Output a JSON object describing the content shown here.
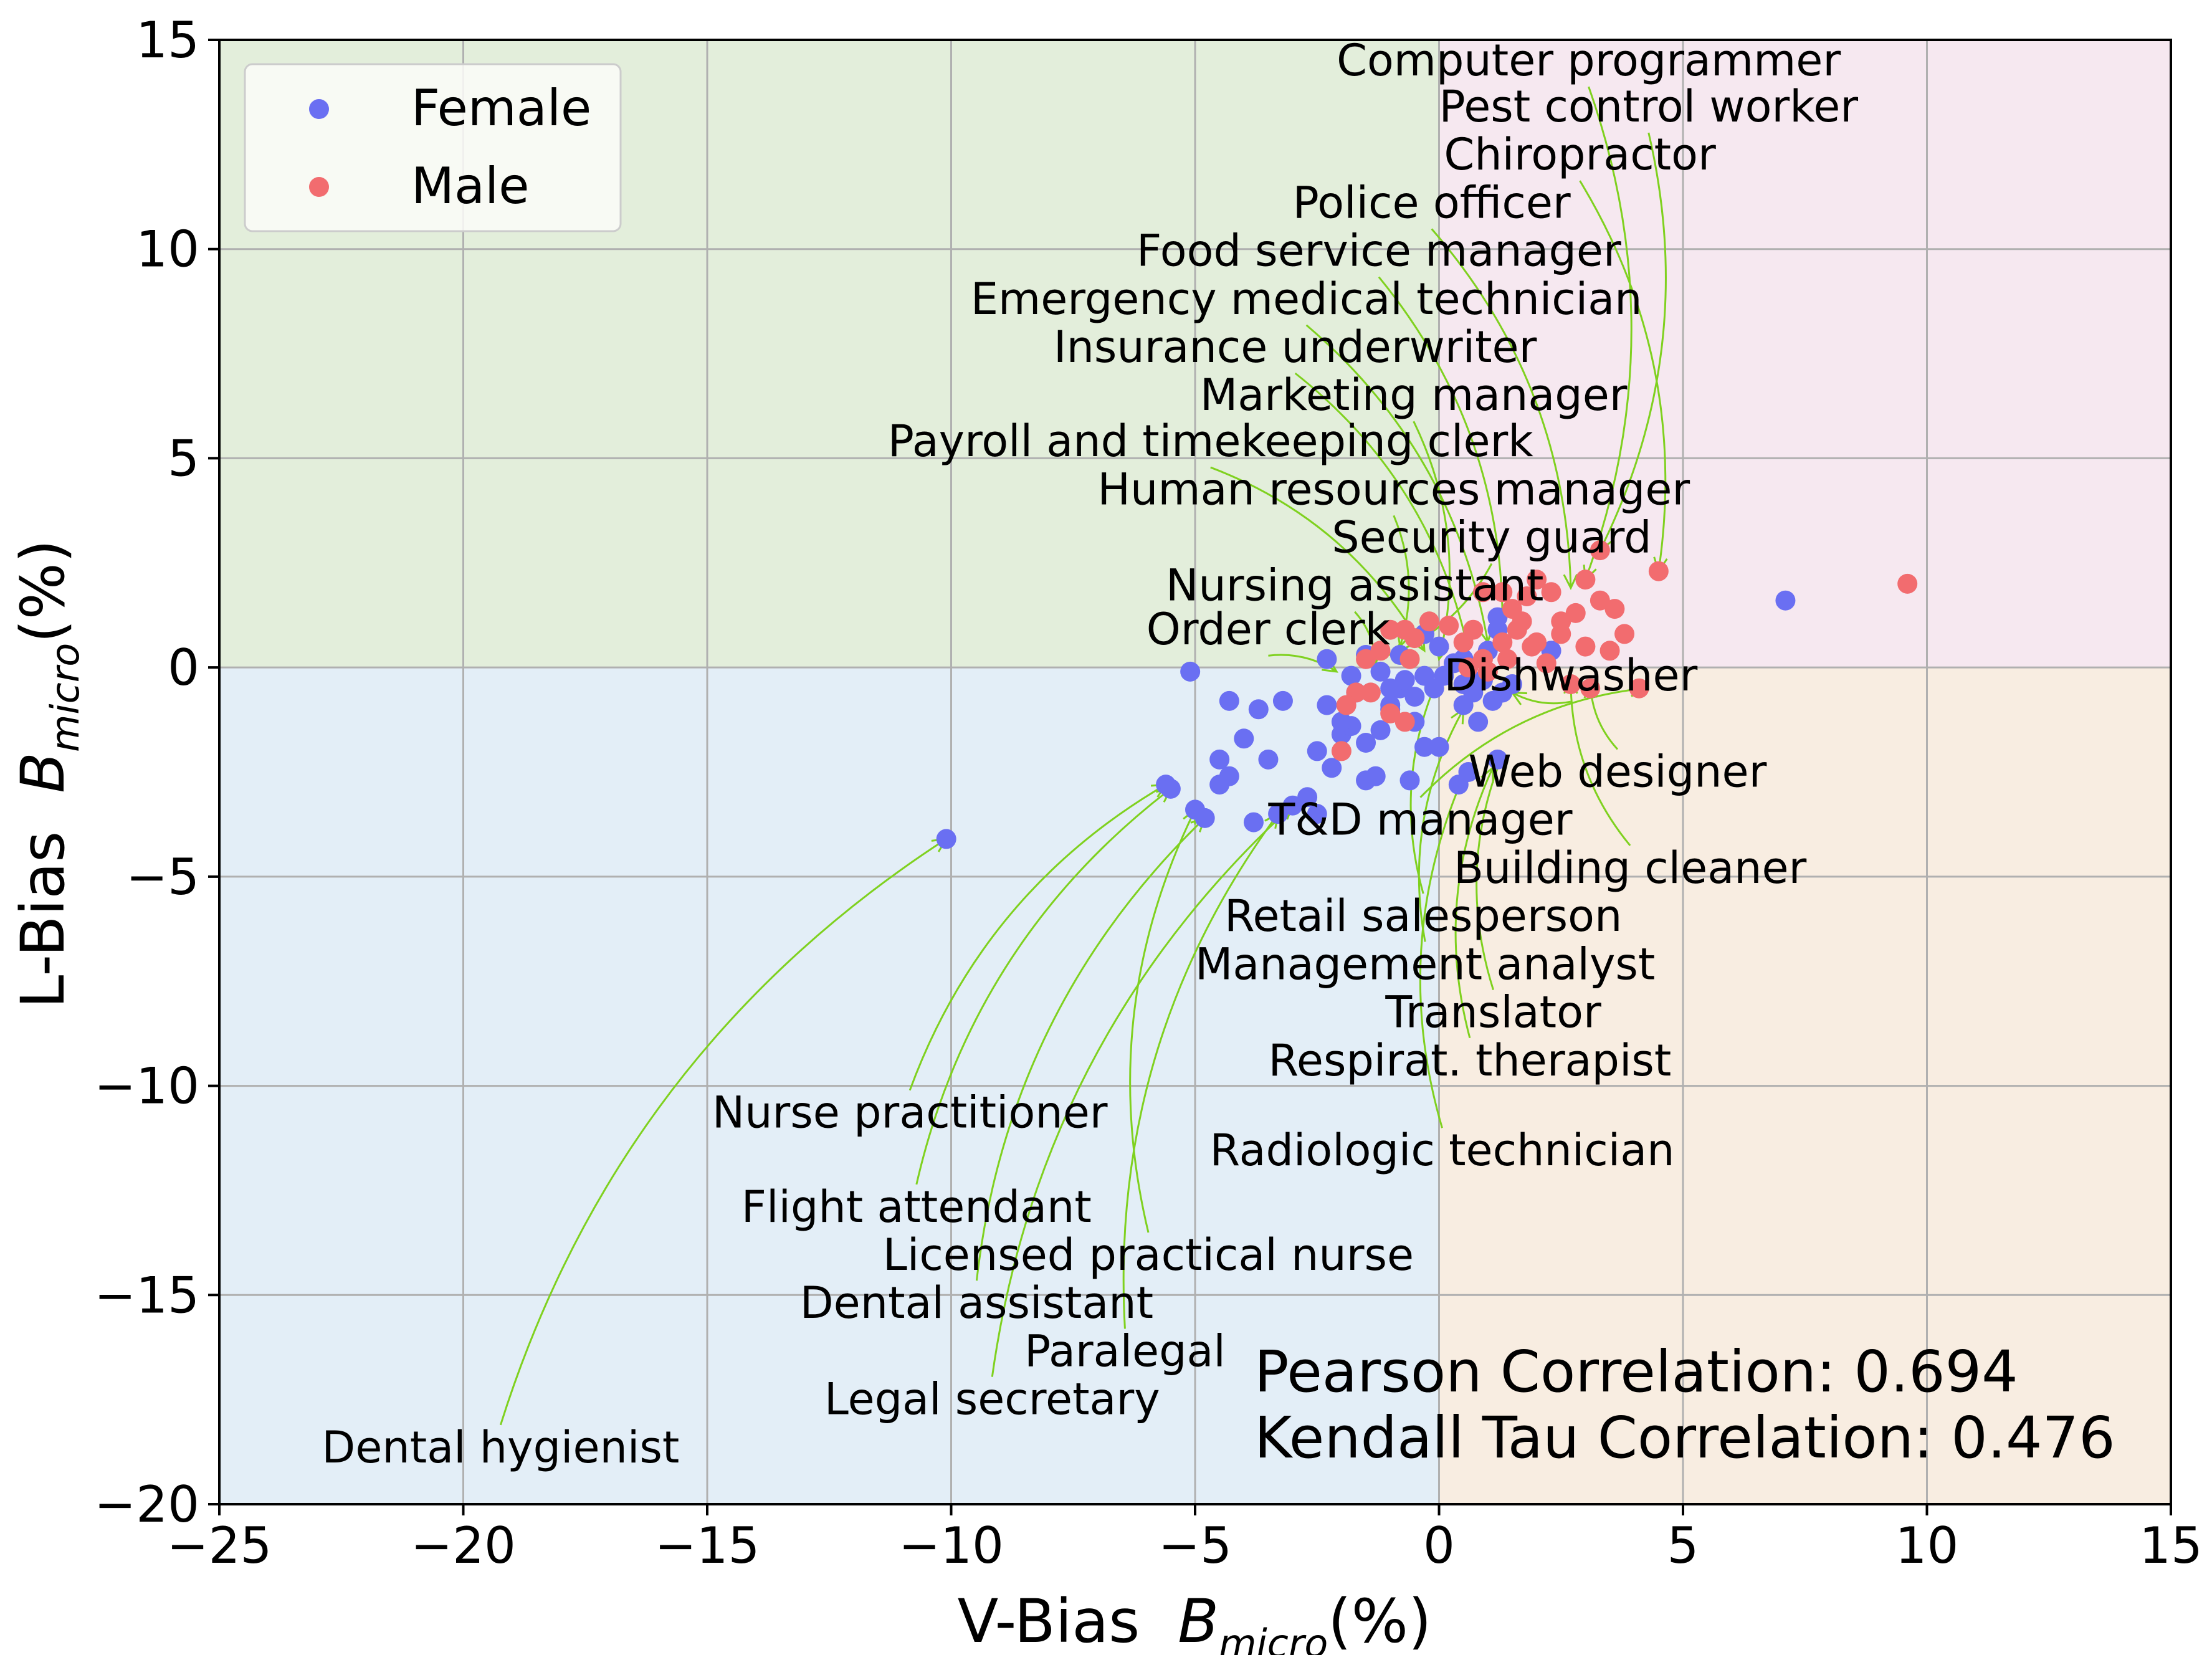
{
  "chart_data": {
    "type": "scatter",
    "xlabel": "V-Bias  B_micro(%)",
    "ylabel": "L-Bias  B_micro(%)",
    "axis_label_main": {
      "x": "V-Bias  ",
      "y": "L-Bias  "
    },
    "axis_label_symbol": "B",
    "axis_label_subscript": "micro",
    "axis_label_suffix": "(%)",
    "xlim": [
      -25,
      15
    ],
    "ylim": [
      -20,
      15
    ],
    "x_ticks": [
      -25,
      -20,
      -15,
      -10,
      -5,
      0,
      5,
      10,
      15
    ],
    "y_ticks": [
      -20,
      -15,
      -10,
      -5,
      0,
      5,
      10,
      15
    ],
    "x_tick_labels": [
      "−25",
      "−20",
      "−15",
      "−10",
      "−5",
      "0",
      "5",
      "10",
      "15"
    ],
    "y_tick_labels": [
      "−20",
      "−15",
      "−10",
      "−5",
      "0",
      "5",
      "10",
      "15"
    ],
    "grid": true,
    "legend_position": "top-left",
    "quadrant_colors": {
      "top_left": "#e3eedb",
      "top_right": "#f6e8f0",
      "bottom_left": "#e3eef7",
      "bottom_right": "#f8ede1"
    },
    "annotation_arrow_color": "#7fd11f",
    "correlations": [
      "Pearson Correlation: 0.694",
      "Kendall Tau Correlation: 0.476"
    ],
    "series": [
      {
        "name": "Female",
        "color": "#6a6ff2",
        "points": [
          [
            -10.1,
            -4.1
          ],
          [
            -5.6,
            -2.8
          ],
          [
            -5.5,
            -2.9
          ],
          [
            -5.0,
            -3.4
          ],
          [
            -4.8,
            -3.6
          ],
          [
            -4.5,
            -2.8
          ],
          [
            -4.3,
            -2.6
          ],
          [
            -4.5,
            -2.2
          ],
          [
            -4.0,
            -1.7
          ],
          [
            -3.7,
            -1.0
          ],
          [
            -3.5,
            -2.2
          ],
          [
            -3.2,
            -0.8
          ],
          [
            -3.0,
            -3.3
          ],
          [
            -2.7,
            -3.1
          ],
          [
            -3.3,
            -3.5
          ],
          [
            -2.5,
            -3.5
          ],
          [
            -2.5,
            -2.0
          ],
          [
            -2.2,
            -2.4
          ],
          [
            -2.3,
            -0.9
          ],
          [
            -2.0,
            -1.6
          ],
          [
            -1.8,
            -1.4
          ],
          [
            -1.5,
            -2.7
          ],
          [
            -1.3,
            -2.6
          ],
          [
            -0.6,
            -2.7
          ],
          [
            -1.5,
            -1.8
          ],
          [
            -1.2,
            -1.5
          ],
          [
            -1.0,
            -1.0
          ],
          [
            -0.8,
            -0.5
          ],
          [
            -0.5,
            -1.3
          ],
          [
            -0.3,
            -1.9
          ],
          [
            0.0,
            -1.9
          ],
          [
            -5.1,
            -0.1
          ],
          [
            -4.3,
            -0.8
          ],
          [
            -2.3,
            0.2
          ],
          [
            -1.8,
            -0.2
          ],
          [
            -1.5,
            0.3
          ],
          [
            -1.2,
            -0.1
          ],
          [
            -1.0,
            -0.5
          ],
          [
            -0.7,
            -0.3
          ],
          [
            -0.5,
            -0.7
          ],
          [
            -0.3,
            -0.2
          ],
          [
            -0.1,
            -0.5
          ],
          [
            0.1,
            -0.2
          ],
          [
            0.3,
            0.1
          ],
          [
            0.5,
            -0.4
          ],
          [
            0.7,
            -0.6
          ],
          [
            0.9,
            -0.3
          ],
          [
            1.1,
            -0.8
          ],
          [
            1.3,
            -0.6
          ],
          [
            1.5,
            -0.4
          ],
          [
            0.5,
            -0.9
          ],
          [
            0.8,
            -1.3
          ],
          [
            1.0,
            0.4
          ],
          [
            1.2,
            0.9
          ],
          [
            1.2,
            1.2
          ],
          [
            2.3,
            0.4
          ],
          [
            0.4,
            -2.8
          ],
          [
            0.6,
            -2.5
          ],
          [
            1.2,
            -2.2
          ],
          [
            -0.8,
            0.3
          ],
          [
            -0.3,
            0.8
          ],
          [
            0.0,
            0.5
          ],
          [
            0.5,
            0.2
          ],
          [
            -1.0,
            -0.9
          ],
          [
            -2.0,
            -1.3
          ],
          [
            -3.8,
            -3.7
          ],
          [
            -1.7,
            -0.6
          ],
          [
            7.1,
            1.6
          ]
        ]
      },
      {
        "name": "Male",
        "color": "#f26c6f",
        "points": [
          [
            9.6,
            2.0
          ],
          [
            4.5,
            2.3
          ],
          [
            3.3,
            2.8
          ],
          [
            3.0,
            2.1
          ],
          [
            3.6,
            1.4
          ],
          [
            3.3,
            1.6
          ],
          [
            3.8,
            0.8
          ],
          [
            3.5,
            0.4
          ],
          [
            2.8,
            1.3
          ],
          [
            2.5,
            0.8
          ],
          [
            2.0,
            2.1
          ],
          [
            2.3,
            1.8
          ],
          [
            1.8,
            1.7
          ],
          [
            1.5,
            1.4
          ],
          [
            1.3,
            1.8
          ],
          [
            1.6,
            0.9
          ],
          [
            1.9,
            0.5
          ],
          [
            2.2,
            0.1
          ],
          [
            2.7,
            -0.4
          ],
          [
            3.1,
            -0.5
          ],
          [
            4.1,
            -0.5
          ],
          [
            1.7,
            1.1
          ],
          [
            1.3,
            0.6
          ],
          [
            0.9,
            1.8
          ],
          [
            0.7,
            0.9
          ],
          [
            0.5,
            0.6
          ],
          [
            0.9,
            0.2
          ],
          [
            0.2,
            1.0
          ],
          [
            -0.2,
            1.1
          ],
          [
            -0.5,
            0.7
          ],
          [
            -0.7,
            0.9
          ],
          [
            -1.0,
            0.9
          ],
          [
            -1.2,
            0.4
          ],
          [
            -1.5,
            0.2
          ],
          [
            -1.4,
            -0.6
          ],
          [
            -1.7,
            -0.6
          ],
          [
            -1.0,
            -1.1
          ],
          [
            -0.7,
            -1.3
          ],
          [
            -1.9,
            -0.9
          ],
          [
            -2.0,
            -2.0
          ],
          [
            -0.6,
            0.2
          ],
          [
            0.6,
            0.0
          ],
          [
            1.0,
            -0.1
          ],
          [
            1.4,
            0.2
          ],
          [
            2.0,
            0.6
          ],
          [
            2.5,
            1.1
          ],
          [
            3.0,
            0.5
          ]
        ]
      }
    ],
    "annotations": [
      {
        "text": "Computer programmer",
        "tx": -2.1,
        "ty": 14.15,
        "px": 3.0,
        "py": 2.1
      },
      {
        "text": "Pest control worker",
        "tx": 0.0,
        "ty": 13.05,
        "px": 3.3,
        "py": 2.8
      },
      {
        "text": "Chiropractor",
        "tx": 0.1,
        "ty": 11.9,
        "px": 4.5,
        "py": 2.3
      },
      {
        "text": "Police officer",
        "tx": -3.0,
        "ty": 10.75,
        "px": 2.7,
        "py": 1.9
      },
      {
        "text": "Food service manager",
        "tx": -6.2,
        "ty": 9.6,
        "px": 1.3,
        "py": 1.0
      },
      {
        "text": "Emergency medical technician",
        "tx": -9.6,
        "ty": 8.45,
        "px": 1.0,
        "py": 0.6
      },
      {
        "text": "Insurance underwriter",
        "tx": -7.9,
        "ty": 7.3,
        "px": 0.6,
        "py": 0.4
      },
      {
        "text": "Marketing manager",
        "tx": -4.9,
        "ty": 6.15,
        "px": 0.0,
        "py": 0.2
      },
      {
        "text": "Payroll and timekeeping clerk",
        "tx": -11.3,
        "ty": 5.05,
        "px": -0.3,
        "py": 0.4
      },
      {
        "text": "Human resources manager",
        "tx": -7.0,
        "ty": 3.9,
        "px": -0.8,
        "py": 0.5
      },
      {
        "text": "Security guard",
        "tx": -2.2,
        "ty": 2.75,
        "px": -1.0,
        "py": 0.3
      },
      {
        "text": "Nursing assistant",
        "tx": -5.6,
        "ty": 1.6,
        "px": -1.3,
        "py": 0.1
      },
      {
        "text": "Order clerk",
        "tx": -6.0,
        "ty": 0.55,
        "px": -2.1,
        "py": -0.1
      },
      {
        "text": "Dishwasher",
        "tx": 0.1,
        "ty": -0.55,
        "px": 1.5,
        "py": -0.6
      },
      {
        "text": "Web designer",
        "tx": 0.6,
        "ty": -2.85,
        "px": 3.1,
        "py": -0.4
      },
      {
        "text": "T&D manager",
        "tx": -3.5,
        "ty": -4.0,
        "px": 4.2,
        "py": -0.5
      },
      {
        "text": "Building cleaner",
        "tx": 0.3,
        "ty": -5.15,
        "px": 2.7,
        "py": -0.3
      },
      {
        "text": "Retail salesperson",
        "tx": -4.4,
        "ty": -6.3,
        "px": 0.0,
        "py": -0.2
      },
      {
        "text": "Management analyst",
        "tx": -5.0,
        "ty": -7.45,
        "px": 0.5,
        "py": -1.0
      },
      {
        "text": "Translator",
        "tx": -1.1,
        "ty": -8.6,
        "px": 1.3,
        "py": -2.1
      },
      {
        "text": "Respirat. therapist",
        "tx": -3.5,
        "ty": -9.75,
        "px": 1.1,
        "py": -2.4
      },
      {
        "text": "Radiologic technician",
        "tx": -4.7,
        "ty": -11.9,
        "px": 0.5,
        "py": -2.6
      },
      {
        "text": "Nurse practitioner",
        "tx": -14.9,
        "ty": -11.0,
        "px": -5.6,
        "py": -2.8
      },
      {
        "text": "Flight attendant",
        "tx": -14.3,
        "ty": -13.25,
        "px": -5.5,
        "py": -2.9
      },
      {
        "text": "Licensed practical nurse",
        "tx": -11.4,
        "ty": -14.4,
        "px": -5.0,
        "py": -3.4
      },
      {
        "text": "Dental assistant",
        "tx": -13.1,
        "ty": -15.55,
        "px": -4.8,
        "py": -3.6
      },
      {
        "text": "Paralegal",
        "tx": -8.5,
        "ty": -16.7,
        "px": -3.3,
        "py": -3.5
      },
      {
        "text": "Legal secretary",
        "tx": -12.6,
        "ty": -17.85,
        "px": -3.0,
        "py": -3.3
      },
      {
        "text": "Dental hygienist",
        "tx": -22.9,
        "ty": -19.0,
        "px": -10.1,
        "py": -4.1
      }
    ]
  }
}
